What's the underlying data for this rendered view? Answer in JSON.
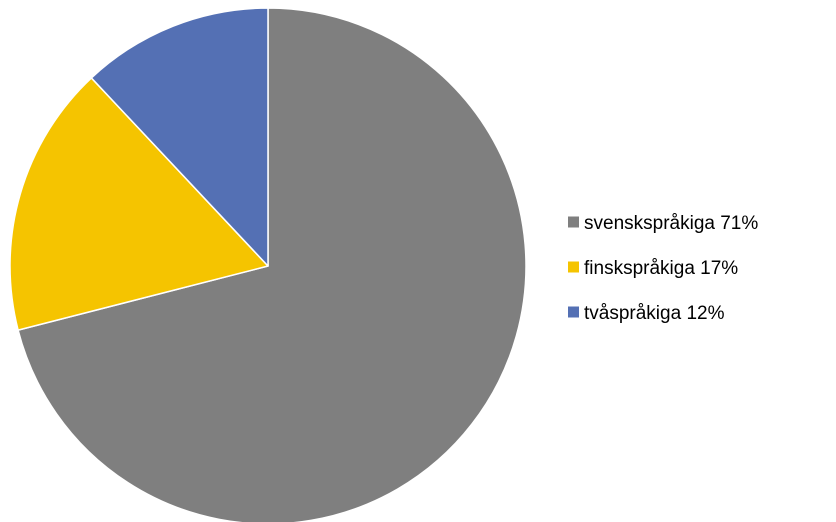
{
  "chart_data": {
    "type": "pie",
    "title": "",
    "slices": [
      {
        "label": "svenskspråkiga 71%",
        "value": 71,
        "color": "#7f7f7f"
      },
      {
        "label": "finskspråkiga 17%",
        "value": 17,
        "color": "#f5c400"
      },
      {
        "label": "tvåspråkiga 12%",
        "value": 12,
        "color": "#5470b4"
      }
    ],
    "start": "top",
    "direction": "clockwise",
    "legend": {
      "position": "right"
    }
  }
}
